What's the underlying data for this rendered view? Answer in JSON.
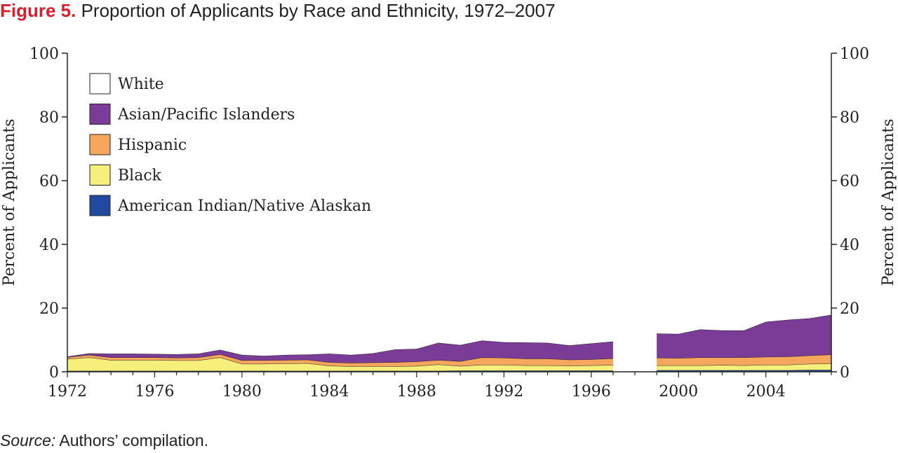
{
  "figure": {
    "label": "Figure 5.",
    "title": "Proportion of Applicants by Race and Ethnicity, 1972–2007"
  },
  "source": {
    "label": "Source:",
    "text": "Authors’ compilation."
  },
  "colors": {
    "white": "#ffffff",
    "asian": "#7b3c98",
    "hispanic": "#f6a75e",
    "black": "#f6ef7c",
    "native": "#1f4aa0",
    "outline": "#222222"
  },
  "chart_data": {
    "type": "area",
    "stacked": true,
    "x_tick_labels": [
      "1972",
      "1976",
      "1980",
      "1984",
      "1988",
      "1992",
      "1996",
      "2000",
      "2004"
    ],
    "xlim": [
      1972,
      2007
    ],
    "ylim": [
      0,
      100
    ],
    "y_ticks": [
      0,
      20,
      40,
      60,
      80,
      100
    ],
    "y_tick_labels": [
      "0",
      "20",
      "40",
      "60",
      "80",
      "100"
    ],
    "ylabel_left": "Percent of Applicants",
    "ylabel_right": "Percent of Applicants",
    "legend_position": "top-left",
    "missing_year": 1998,
    "x": [
      1972,
      1973,
      1974,
      1975,
      1976,
      1977,
      1978,
      1979,
      1980,
      1981,
      1982,
      1983,
      1984,
      1985,
      1986,
      1987,
      1988,
      1989,
      1990,
      1991,
      1992,
      1993,
      1994,
      1995,
      1996,
      1997,
      1998,
      1999,
      2000,
      2001,
      2002,
      2003,
      2004,
      2005,
      2006,
      2007
    ],
    "series": [
      {
        "name": "American Indian/Native Alaskan",
        "key": "native",
        "values": [
          0.3,
          0.3,
          0.3,
          0.3,
          0.3,
          0.3,
          0.3,
          0.3,
          0.3,
          0.3,
          0.3,
          0.3,
          0.3,
          0.3,
          0.3,
          0.3,
          0.3,
          0.3,
          0.4,
          0.4,
          0.4,
          0.4,
          0.4,
          0.4,
          0.4,
          0.4,
          null,
          0.5,
          0.5,
          0.5,
          0.5,
          0.5,
          0.5,
          0.5,
          0.6,
          0.6
        ]
      },
      {
        "name": "Black",
        "key": "black",
        "values": [
          3.7,
          4.2,
          3.4,
          3.4,
          3.4,
          3.3,
          3.3,
          4.2,
          2.2,
          2.2,
          2.3,
          2.4,
          1.6,
          1.4,
          1.4,
          1.4,
          1.5,
          2.0,
          1.4,
          1.8,
          1.8,
          1.6,
          1.6,
          1.5,
          1.6,
          1.7,
          null,
          1.5,
          1.5,
          1.5,
          1.6,
          1.5,
          1.7,
          1.7,
          1.9,
          2.0
        ]
      },
      {
        "name": "Hispanic",
        "key": "hispanic",
        "values": [
          0.6,
          0.8,
          0.8,
          0.8,
          0.8,
          0.8,
          0.9,
          1.0,
          1.1,
          1.1,
          1.1,
          1.1,
          1.1,
          1.1,
          1.2,
          1.3,
          1.4,
          1.4,
          1.5,
          2.3,
          2.2,
          2.1,
          2.1,
          1.9,
          1.9,
          2.1,
          null,
          2.4,
          2.3,
          2.5,
          2.4,
          2.5,
          2.5,
          2.6,
          2.6,
          2.8
        ]
      },
      {
        "name": "Asian/Pacific Islanders",
        "key": "asian",
        "values": [
          0.2,
          0.5,
          1.2,
          1.2,
          1.1,
          1.1,
          1.2,
          1.4,
          1.7,
          1.4,
          1.6,
          1.6,
          2.7,
          2.5,
          2.9,
          4.0,
          4.0,
          5.4,
          5.1,
          5.3,
          4.9,
          5.1,
          5.0,
          4.5,
          5.0,
          5.3,
          null,
          7.6,
          7.6,
          8.8,
          8.5,
          8.5,
          11.0,
          11.5,
          11.7,
          12.5
        ]
      },
      {
        "name": "White",
        "key": "white",
        "values": [
          95.2,
          94.2,
          94.3,
          94.3,
          94.4,
          94.5,
          94.3,
          93.1,
          94.7,
          95.0,
          94.7,
          94.6,
          94.3,
          94.7,
          94.2,
          93.0,
          92.8,
          90.9,
          91.6,
          90.2,
          90.7,
          90.8,
          90.9,
          91.7,
          91.1,
          90.5,
          null,
          88.0,
          88.1,
          86.7,
          87.0,
          87.0,
          84.3,
          83.7,
          83.2,
          82.1
        ]
      }
    ]
  }
}
